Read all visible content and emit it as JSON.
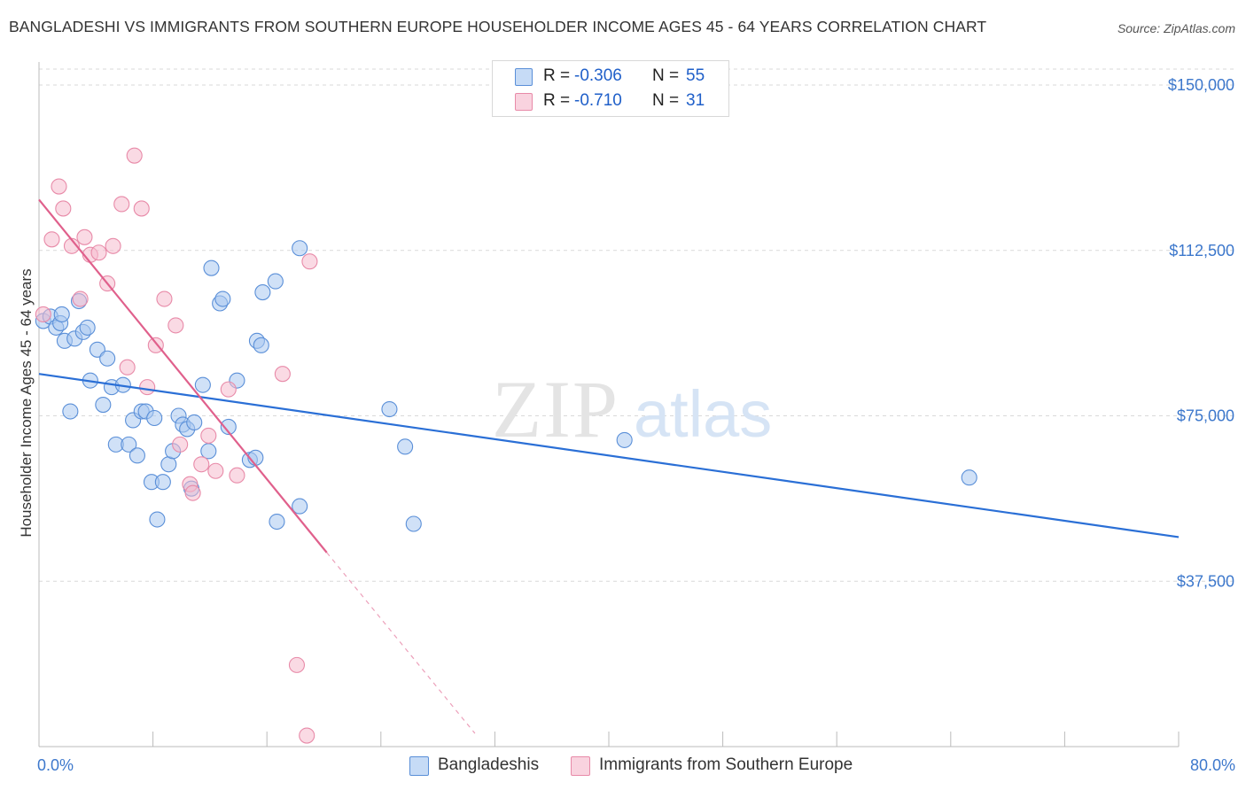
{
  "title": "BANGLADESHI VS IMMIGRANTS FROM SOUTHERN EUROPE HOUSEHOLDER INCOME AGES 45 - 64 YEARS CORRELATION CHART",
  "source": "Source: ZipAtlas.com",
  "watermark": {
    "zip": "ZIP",
    "atlas": "atlas"
  },
  "colors": {
    "blue_fill": "#a9c8f0",
    "blue_stroke": "#5a8fd8",
    "blue_line": "#2a6fd6",
    "pink_fill": "#f6bccd",
    "pink_stroke": "#e88aa8",
    "pink_line": "#e0608c",
    "axis_text": "#3d78cc",
    "grid": "#d9d9d9"
  },
  "legend": {
    "rows": [
      {
        "r_label": "R =",
        "r_value": "-0.306",
        "n_label": "N =",
        "n_value": "55",
        "color": "#a9c8f0"
      },
      {
        "r_label": "R =",
        "r_value": "-0.710",
        "n_label": "N =",
        "n_value": "31",
        "color": "#f6bccd"
      }
    ]
  },
  "bottom_legend": {
    "items": [
      {
        "label": "Bangladeshis",
        "color": "#a9c8f0"
      },
      {
        "label": "Immigrants from Southern Europe",
        "color": "#f6bccd"
      }
    ]
  },
  "chart_data": {
    "type": "scatter",
    "title": "BANGLADESHI VS IMMIGRANTS FROM SOUTHERN EUROPE HOUSEHOLDER INCOME AGES 45 - 64 YEARS CORRELATION CHART",
    "xlabel": "",
    "ylabel": "Householder Income Ages 45 - 64 years",
    "xlim": [
      0,
      80
    ],
    "ylim": [
      0,
      153000
    ],
    "x_tick_labels": [
      {
        "value": 0,
        "label": "0.0%"
      },
      {
        "value": 80,
        "label": "80.0%"
      }
    ],
    "y_ticks": [
      {
        "value": 150000,
        "label": "$150,000"
      },
      {
        "value": 112500,
        "label": "$112,500"
      },
      {
        "value": 75000,
        "label": "$75,000"
      },
      {
        "value": 37500,
        "label": "$37,500"
      }
    ],
    "x_minor_ticks": [
      0,
      8,
      16,
      24,
      32,
      40,
      48,
      56,
      64,
      72,
      80
    ],
    "series": [
      {
        "name": "Bangladeshis",
        "color": "blue",
        "points": [
          [
            0.3,
            96500
          ],
          [
            0.8,
            97500
          ],
          [
            1.2,
            95000
          ],
          [
            1.5,
            96000
          ],
          [
            1.6,
            98000
          ],
          [
            1.8,
            92000
          ],
          [
            2.2,
            76000
          ],
          [
            2.5,
            92500
          ],
          [
            2.8,
            101000
          ],
          [
            3.1,
            94000
          ],
          [
            3.4,
            95000
          ],
          [
            3.6,
            83000
          ],
          [
            4.1,
            90000
          ],
          [
            4.5,
            77500
          ],
          [
            4.8,
            88000
          ],
          [
            5.1,
            81500
          ],
          [
            5.4,
            68500
          ],
          [
            5.9,
            82000
          ],
          [
            6.3,
            68500
          ],
          [
            6.6,
            74000
          ],
          [
            6.9,
            66000
          ],
          [
            7.2,
            76000
          ],
          [
            7.5,
            76000
          ],
          [
            7.9,
            60000
          ],
          [
            8.1,
            74500
          ],
          [
            8.3,
            51500
          ],
          [
            8.7,
            60000
          ],
          [
            9.1,
            64000
          ],
          [
            9.4,
            67000
          ],
          [
            9.8,
            75000
          ],
          [
            10.1,
            73000
          ],
          [
            10.4,
            72000
          ],
          [
            10.9,
            73500
          ],
          [
            10.7,
            58500
          ],
          [
            11.5,
            82000
          ],
          [
            11.9,
            67000
          ],
          [
            12.1,
            108500
          ],
          [
            12.7,
            100500
          ],
          [
            12.9,
            101500
          ],
          [
            13.3,
            72500
          ],
          [
            13.9,
            83000
          ],
          [
            14.8,
            65000
          ],
          [
            15.2,
            65500
          ],
          [
            15.3,
            92000
          ],
          [
            15.6,
            91000
          ],
          [
            15.7,
            103000
          ],
          [
            16.6,
            105500
          ],
          [
            16.7,
            51000
          ],
          [
            18.3,
            113000
          ],
          [
            18.3,
            54500
          ],
          [
            24.6,
            76500
          ],
          [
            25.7,
            68000
          ],
          [
            26.3,
            50500
          ],
          [
            41.1,
            69500
          ],
          [
            65.3,
            61000
          ]
        ],
        "trend": {
          "x": [
            0,
            80
          ],
          "y": [
            84500,
            47500
          ]
        }
      },
      {
        "name": "Immigrants from Southern Europe",
        "color": "pink",
        "points": [
          [
            0.3,
            98000
          ],
          [
            0.9,
            115000
          ],
          [
            1.4,
            127000
          ],
          [
            1.7,
            122000
          ],
          [
            2.3,
            113500
          ],
          [
            3.2,
            115500
          ],
          [
            3.6,
            111500
          ],
          [
            4.2,
            112000
          ],
          [
            4.8,
            105000
          ],
          [
            5.2,
            113500
          ],
          [
            5.8,
            123000
          ],
          [
            6.2,
            86000
          ],
          [
            6.7,
            134000
          ],
          [
            7.2,
            122000
          ],
          [
            7.6,
            81500
          ],
          [
            8.2,
            91000
          ],
          [
            8.8,
            101500
          ],
          [
            9.6,
            95500
          ],
          [
            9.9,
            68500
          ],
          [
            10.6,
            59500
          ],
          [
            10.8,
            57500
          ],
          [
            11.4,
            64000
          ],
          [
            11.9,
            70500
          ],
          [
            12.4,
            62500
          ],
          [
            13.3,
            81000
          ],
          [
            13.9,
            61500
          ],
          [
            17.1,
            84500
          ],
          [
            18.1,
            18500
          ],
          [
            19.0,
            110000
          ],
          [
            18.8,
            2500
          ],
          [
            2.9,
            101500
          ]
        ],
        "trend": {
          "x": [
            0,
            20.2
          ],
          "y": [
            124000,
            44000
          ]
        },
        "trend_extension": {
          "x": [
            20.2,
            30.6
          ],
          "y": [
            44000,
            3000
          ]
        }
      }
    ]
  }
}
